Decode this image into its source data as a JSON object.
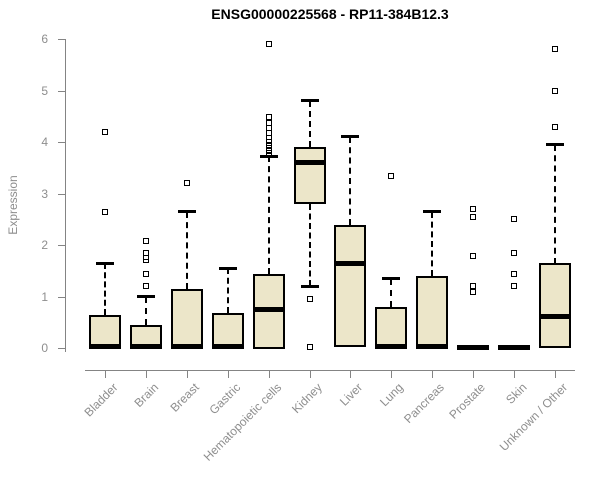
{
  "chart_data": {
    "type": "boxplot",
    "title": "ENSG00000225568 - RP11-384B12.3",
    "ylabel": "Expression",
    "ylim": [
      0,
      6
    ],
    "yticks": [
      "0",
      "1",
      "2",
      "3",
      "4",
      "5",
      "6"
    ],
    "grid": false,
    "legend": "none",
    "categories": [
      "Bladder",
      "Brain",
      "Breast",
      "Gastric",
      "Hematopoietic cells",
      "Kidney",
      "Liver",
      "Lung",
      "Pancreas",
      "Prostate",
      "Skin",
      "Unknown / Other"
    ],
    "boxes": [
      {
        "category": "Bladder",
        "low": 0,
        "q1": 0,
        "median": 0.03,
        "q3": 0.65,
        "high": 1.65,
        "outliers": [
          2.65,
          4.2
        ]
      },
      {
        "category": "Brain",
        "low": 0,
        "q1": 0,
        "median": 0.03,
        "q3": 0.45,
        "high": 1.0,
        "outliers": [
          1.2,
          1.45,
          1.72,
          1.78,
          1.85,
          2.08
        ]
      },
      {
        "category": "Breast",
        "low": 0,
        "q1": 0,
        "median": 0.03,
        "q3": 1.15,
        "high": 2.65,
        "outliers": [
          3.2
        ]
      },
      {
        "category": "Gastric",
        "low": 0,
        "q1": 0,
        "median": 0.03,
        "q3": 0.68,
        "high": 1.55,
        "outliers": []
      },
      {
        "category": "Hematopoietic cells",
        "low": 0,
        "q1": 0,
        "median": 0.75,
        "q3": 1.45,
        "high": 3.73,
        "outliers": [
          3.78,
          3.82,
          3.85,
          3.88,
          3.92,
          3.95,
          3.98,
          4.02,
          4.05,
          4.1,
          4.18,
          4.28,
          4.38,
          4.48,
          5.9
        ]
      },
      {
        "category": "Kidney",
        "low": 1.2,
        "q1": 2.8,
        "median": 3.6,
        "q3": 3.9,
        "high": 4.8,
        "outliers": [
          0.95,
          0.03
        ]
      },
      {
        "category": "Liver",
        "low": 0.03,
        "q1": 0.03,
        "median": 1.65,
        "q3": 2.4,
        "high": 4.1,
        "outliers": []
      },
      {
        "category": "Lung",
        "low": 0,
        "q1": 0,
        "median": 0.03,
        "q3": 0.8,
        "high": 1.35,
        "outliers": [
          3.35
        ]
      },
      {
        "category": "Pancreas",
        "low": 0,
        "q1": 0,
        "median": 0.03,
        "q3": 1.4,
        "high": 2.65,
        "outliers": []
      },
      {
        "category": "Prostate",
        "low": 0,
        "q1": 0,
        "median": 0.02,
        "q3": 0.04,
        "high": 0.04,
        "outliers": [
          1.1,
          1.2,
          1.8,
          2.55,
          2.7
        ]
      },
      {
        "category": "Skin",
        "low": 0,
        "q1": 0,
        "median": 0.02,
        "q3": 0.04,
        "high": 0.04,
        "outliers": [
          1.2,
          1.45,
          1.85,
          2.5
        ]
      },
      {
        "category": "Unknown / Other",
        "low": 0,
        "q1": 0,
        "median": 0.62,
        "q3": 1.65,
        "high": 3.95,
        "outliers": [
          4.3,
          5.0,
          5.8
        ]
      }
    ],
    "colors": {
      "box_fill": "#ECE6C9",
      "box_border": "#000000",
      "axis_line": "#848484",
      "tick_text": "#8e8e8e",
      "title_text": "#000000"
    }
  }
}
